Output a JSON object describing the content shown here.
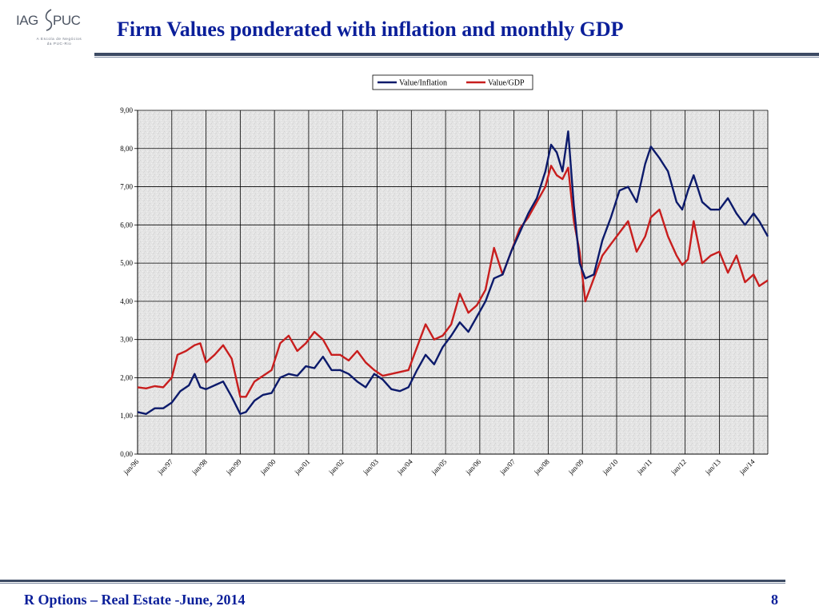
{
  "header": {
    "title": "Firm Values ponderated with inflation and monthly GDP",
    "logo": {
      "left": "IAG",
      "right": "PUC",
      "tagline_1": "A Escola de Negócios",
      "tagline_2": "da PUC-Rio"
    }
  },
  "footer": {
    "left_text": "R Options – Real Estate -June, 2014",
    "page_number": "8"
  },
  "colors": {
    "title": "#0b1f9a",
    "rule": "#3c4a63",
    "value_inflation": "#0c1a6b",
    "value_gdp": "#c81e1e",
    "plot_background": "#e6e6e6",
    "gridline": "#000000"
  },
  "chart_data": {
    "type": "line",
    "title": "",
    "xlabel": "",
    "ylabel": "",
    "ylim": [
      0,
      9
    ],
    "yticks": [
      "0,00",
      "1,00",
      "2,00",
      "3,00",
      "4,00",
      "5,00",
      "6,00",
      "7,00",
      "8,00",
      "9,00"
    ],
    "xticks": [
      "jan/96",
      "jan/97",
      "jan/98",
      "jan/99",
      "jan/00",
      "jan/01",
      "jan/02",
      "jan/03",
      "jan/04",
      "jan/05",
      "jan/06",
      "jan/07",
      "jan/08",
      "jan/09",
      "jan/10",
      "jan/11",
      "jan/12",
      "jan/13",
      "jan/14"
    ],
    "grid": true,
    "legend_position": "top-center",
    "x_start": "1996-01",
    "x_end": "2014-06",
    "series": [
      {
        "name": "Value/Inflation",
        "color": "#0c1a6b",
        "points": [
          [
            "1996-01",
            1.1
          ],
          [
            "1996-04",
            1.05
          ],
          [
            "1996-07",
            1.2
          ],
          [
            "1996-10",
            1.2
          ],
          [
            "1997-01",
            1.35
          ],
          [
            "1997-04",
            1.65
          ],
          [
            "1997-07",
            1.8
          ],
          [
            "1997-09",
            2.1
          ],
          [
            "1997-11",
            1.75
          ],
          [
            "1998-01",
            1.7
          ],
          [
            "1998-04",
            1.8
          ],
          [
            "1998-07",
            1.9
          ],
          [
            "1998-10",
            1.5
          ],
          [
            "1999-01",
            1.05
          ],
          [
            "1999-03",
            1.1
          ],
          [
            "1999-06",
            1.4
          ],
          [
            "1999-09",
            1.55
          ],
          [
            "1999-12",
            1.6
          ],
          [
            "2000-03",
            2.0
          ],
          [
            "2000-06",
            2.1
          ],
          [
            "2000-09",
            2.05
          ],
          [
            "2000-12",
            2.3
          ],
          [
            "2001-03",
            2.25
          ],
          [
            "2001-06",
            2.55
          ],
          [
            "2001-09",
            2.2
          ],
          [
            "2001-12",
            2.2
          ],
          [
            "2002-03",
            2.1
          ],
          [
            "2002-06",
            1.9
          ],
          [
            "2002-09",
            1.75
          ],
          [
            "2002-12",
            2.1
          ],
          [
            "2003-03",
            1.95
          ],
          [
            "2003-06",
            1.7
          ],
          [
            "2003-09",
            1.65
          ],
          [
            "2003-12",
            1.75
          ],
          [
            "2004-03",
            2.2
          ],
          [
            "2004-06",
            2.6
          ],
          [
            "2004-09",
            2.35
          ],
          [
            "2004-12",
            2.8
          ],
          [
            "2005-03",
            3.1
          ],
          [
            "2005-06",
            3.45
          ],
          [
            "2005-09",
            3.2
          ],
          [
            "2005-12",
            3.6
          ],
          [
            "2006-03",
            4.0
          ],
          [
            "2006-06",
            4.6
          ],
          [
            "2006-09",
            4.7
          ],
          [
            "2006-12",
            5.3
          ],
          [
            "2007-03",
            5.8
          ],
          [
            "2007-06",
            6.3
          ],
          [
            "2007-09",
            6.7
          ],
          [
            "2007-12",
            7.4
          ],
          [
            "2008-02",
            8.1
          ],
          [
            "2008-04",
            7.9
          ],
          [
            "2008-06",
            7.4
          ],
          [
            "2008-08",
            8.45
          ],
          [
            "2008-10",
            6.5
          ],
          [
            "2008-12",
            5.0
          ],
          [
            "2009-02",
            4.6
          ],
          [
            "2009-05",
            4.7
          ],
          [
            "2009-08",
            5.6
          ],
          [
            "2009-11",
            6.2
          ],
          [
            "2010-02",
            6.9
          ],
          [
            "2010-05",
            7.0
          ],
          [
            "2010-08",
            6.6
          ],
          [
            "2010-11",
            7.6
          ],
          [
            "2011-01",
            8.05
          ],
          [
            "2011-04",
            7.75
          ],
          [
            "2011-07",
            7.4
          ],
          [
            "2011-10",
            6.6
          ],
          [
            "2011-12",
            6.4
          ],
          [
            "2012-02",
            6.9
          ],
          [
            "2012-04",
            7.3
          ],
          [
            "2012-07",
            6.6
          ],
          [
            "2012-10",
            6.4
          ],
          [
            "2013-01",
            6.4
          ],
          [
            "2013-04",
            6.7
          ],
          [
            "2013-07",
            6.3
          ],
          [
            "2013-10",
            6.0
          ],
          [
            "2014-01",
            6.3
          ],
          [
            "2014-03",
            6.1
          ],
          [
            "2014-06",
            5.7
          ]
        ]
      },
      {
        "name": "Value/GDP",
        "color": "#c81e1e",
        "points": [
          [
            "1996-01",
            1.75
          ],
          [
            "1996-04",
            1.72
          ],
          [
            "1996-07",
            1.78
          ],
          [
            "1996-10",
            1.75
          ],
          [
            "1997-01",
            2.0
          ],
          [
            "1997-03",
            2.6
          ],
          [
            "1997-06",
            2.7
          ],
          [
            "1997-09",
            2.85
          ],
          [
            "1997-11",
            2.9
          ],
          [
            "1998-01",
            2.4
          ],
          [
            "1998-04",
            2.6
          ],
          [
            "1998-07",
            2.85
          ],
          [
            "1998-10",
            2.5
          ],
          [
            "1999-01",
            1.5
          ],
          [
            "1999-03",
            1.5
          ],
          [
            "1999-06",
            1.9
          ],
          [
            "1999-09",
            2.05
          ],
          [
            "1999-12",
            2.2
          ],
          [
            "2000-03",
            2.9
          ],
          [
            "2000-06",
            3.1
          ],
          [
            "2000-09",
            2.7
          ],
          [
            "2000-12",
            2.9
          ],
          [
            "2001-03",
            3.2
          ],
          [
            "2001-06",
            3.0
          ],
          [
            "2001-09",
            2.6
          ],
          [
            "2001-12",
            2.6
          ],
          [
            "2002-03",
            2.45
          ],
          [
            "2002-06",
            2.7
          ],
          [
            "2002-09",
            2.4
          ],
          [
            "2002-12",
            2.2
          ],
          [
            "2003-03",
            2.05
          ],
          [
            "2003-06",
            2.1
          ],
          [
            "2003-09",
            2.15
          ],
          [
            "2003-12",
            2.2
          ],
          [
            "2004-03",
            2.8
          ],
          [
            "2004-06",
            3.4
          ],
          [
            "2004-09",
            3.0
          ],
          [
            "2004-12",
            3.1
          ],
          [
            "2005-03",
            3.4
          ],
          [
            "2005-06",
            4.2
          ],
          [
            "2005-09",
            3.7
          ],
          [
            "2005-12",
            3.9
          ],
          [
            "2006-03",
            4.3
          ],
          [
            "2006-06",
            5.4
          ],
          [
            "2006-09",
            4.7
          ],
          [
            "2006-12",
            5.3
          ],
          [
            "2007-03",
            5.9
          ],
          [
            "2007-06",
            6.2
          ],
          [
            "2007-09",
            6.6
          ],
          [
            "2007-12",
            7.0
          ],
          [
            "2008-02",
            7.55
          ],
          [
            "2008-04",
            7.3
          ],
          [
            "2008-06",
            7.2
          ],
          [
            "2008-08",
            7.5
          ],
          [
            "2008-10",
            6.1
          ],
          [
            "2008-12",
            5.3
          ],
          [
            "2009-02",
            4.0
          ],
          [
            "2009-05",
            4.6
          ],
          [
            "2009-08",
            5.2
          ],
          [
            "2009-11",
            5.5
          ],
          [
            "2010-02",
            5.8
          ],
          [
            "2010-05",
            6.1
          ],
          [
            "2010-08",
            5.3
          ],
          [
            "2010-11",
            5.7
          ],
          [
            "2011-01",
            6.2
          ],
          [
            "2011-04",
            6.4
          ],
          [
            "2011-07",
            5.7
          ],
          [
            "2011-10",
            5.2
          ],
          [
            "2011-12",
            4.95
          ],
          [
            "2012-02",
            5.1
          ],
          [
            "2012-04",
            6.1
          ],
          [
            "2012-07",
            5.0
          ],
          [
            "2012-10",
            5.2
          ],
          [
            "2013-01",
            5.3
          ],
          [
            "2013-04",
            4.75
          ],
          [
            "2013-07",
            5.2
          ],
          [
            "2013-10",
            4.5
          ],
          [
            "2014-01",
            4.7
          ],
          [
            "2014-03",
            4.4
          ],
          [
            "2014-06",
            4.55
          ]
        ]
      }
    ]
  }
}
